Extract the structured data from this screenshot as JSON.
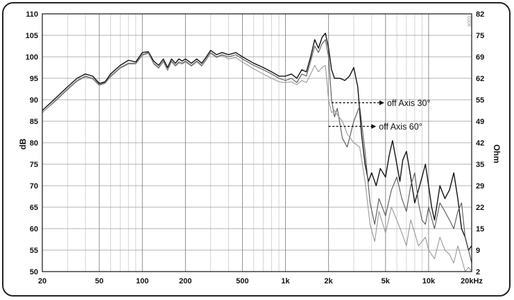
{
  "chart_data": {
    "type": "line",
    "title": "",
    "xlabel": "",
    "ylabel": "dB",
    "y2label": "Ohm",
    "x_scale": "log",
    "xlim": [
      20,
      20000
    ],
    "ylim": [
      50,
      110
    ],
    "y2lim": [
      2,
      82
    ],
    "grid": true,
    "x_ticks": [
      {
        "value": 20,
        "label": "20"
      },
      {
        "value": 50,
        "label": "50"
      },
      {
        "value": 100,
        "label": "100"
      },
      {
        "value": 200,
        "label": "200"
      },
      {
        "value": 500,
        "label": "500"
      },
      {
        "value": 1000,
        "label": "1k"
      },
      {
        "value": 2000,
        "label": "2k"
      },
      {
        "value": 5000,
        "label": "5k"
      },
      {
        "value": 10000,
        "label": "10k"
      },
      {
        "value": 20000,
        "label": "20kHz"
      }
    ],
    "y_ticks": [
      50,
      55,
      60,
      65,
      70,
      75,
      80,
      85,
      90,
      95,
      100,
      105,
      110
    ],
    "y2_ticks": [
      "2",
      "9",
      "15",
      "22",
      "29",
      "35",
      "42",
      "49",
      "55",
      "62",
      "69",
      "75",
      "82"
    ],
    "corner_mark": "0306",
    "annotations": [
      {
        "text": "off Axis 30°",
        "x_start": 2100,
        "x_end": 4900,
        "y": 89.3
      },
      {
        "text": "off Axis 60°",
        "x_start": 2000,
        "x_end": 4300,
        "y": 83.8
      }
    ],
    "series": [
      {
        "color": "#111111",
        "x": [
          20,
          25,
          30,
          35,
          40,
          45,
          50,
          55,
          60,
          70,
          80,
          90,
          100,
          110,
          120,
          130,
          140,
          150,
          160,
          170,
          180,
          190,
          200,
          220,
          240,
          260,
          280,
          300,
          330,
          360,
          400,
          450,
          500,
          600,
          700,
          800,
          900,
          1000,
          1100,
          1200,
          1300,
          1400,
          1500,
          1600,
          1700,
          1800,
          1900,
          2000,
          2100,
          2200,
          2400,
          2600,
          2800,
          3000,
          3200,
          3400,
          3600,
          3800,
          4000,
          4300,
          4600,
          5000,
          5300,
          5600,
          6000,
          6300,
          6600,
          7000,
          7500,
          8000,
          8500,
          9000,
          9500,
          10000,
          10500,
          11000,
          11500,
          12000,
          13000,
          14000,
          15000,
          16000,
          17000,
          18000,
          19000,
          20000
        ],
        "values": [
          87.5,
          90.5,
          93,
          95,
          96,
          95.5,
          93.8,
          94.2,
          96,
          98,
          99.2,
          98.8,
          101,
          101.2,
          99,
          98,
          99.5,
          97.5,
          99.5,
          98.5,
          99.5,
          99,
          99.5,
          98.5,
          99.5,
          98.5,
          100,
          101.5,
          100.5,
          101,
          100.5,
          101,
          100,
          98.5,
          97.5,
          96.5,
          95.5,
          95.5,
          96,
          95,
          97,
          96.5,
          100,
          104,
          102,
          104.5,
          105.5,
          102,
          97,
          95,
          95,
          94.5,
          95.5,
          97.5,
          93,
          82,
          75,
          71,
          73,
          70,
          74,
          72,
          77,
          80.5,
          75,
          71,
          76,
          78,
          72,
          66,
          69,
          72,
          75,
          70,
          65,
          62,
          66,
          70,
          67,
          69,
          73,
          67,
          60,
          58,
          55,
          56
        ]
      },
      {
        "color": "#555555",
        "x": [
          20,
          25,
          30,
          35,
          40,
          45,
          50,
          55,
          60,
          70,
          80,
          90,
          100,
          110,
          120,
          130,
          140,
          150,
          160,
          170,
          180,
          190,
          200,
          220,
          240,
          260,
          280,
          300,
          330,
          360,
          400,
          450,
          500,
          600,
          700,
          800,
          900,
          1000,
          1100,
          1200,
          1300,
          1400,
          1500,
          1600,
          1700,
          1800,
          1900,
          2000,
          2100,
          2200,
          2300,
          2500,
          2700,
          3000,
          3300,
          3600,
          3900,
          4200,
          4500,
          5000,
          5500,
          6000,
          6500,
          7000,
          7500,
          8000,
          8500,
          9000,
          9500,
          10000,
          11000,
          12000,
          13000,
          14000,
          15000,
          16000,
          17000,
          18000,
          19000,
          20000
        ],
        "values": [
          87,
          90,
          92.5,
          94.5,
          95.5,
          95,
          93.5,
          94,
          95.5,
          97.5,
          98.5,
          98.5,
          100.5,
          101,
          98.5,
          97.5,
          99,
          97,
          99,
          98,
          98.8,
          98.5,
          99,
          98,
          99,
          98,
          99.5,
          101,
          100,
          100.5,
          100,
          100.5,
          99.5,
          98,
          97,
          96,
          95,
          94.5,
          95,
          94,
          96,
          95.5,
          99,
          102.5,
          101,
          103,
          104,
          100,
          90,
          86,
          88,
          81,
          79,
          85,
          88.5,
          78,
          66,
          61,
          67,
          63,
          69,
          72,
          67,
          64,
          70,
          73,
          66,
          62,
          61,
          65,
          60,
          66,
          64,
          62,
          60,
          64,
          66,
          58,
          55,
          52
        ]
      },
      {
        "color": "#999999",
        "x": [
          20,
          25,
          30,
          35,
          40,
          45,
          50,
          55,
          60,
          70,
          80,
          90,
          100,
          110,
          120,
          130,
          140,
          150,
          160,
          170,
          180,
          190,
          200,
          220,
          240,
          260,
          280,
          300,
          330,
          360,
          400,
          450,
          500,
          600,
          700,
          800,
          900,
          1000,
          1100,
          1200,
          1300,
          1400,
          1500,
          1600,
          1700,
          1800,
          1900,
          2000,
          2100,
          2200,
          2300,
          2500,
          2700,
          3000,
          3300,
          3600,
          3900,
          4200,
          4500,
          5000,
          5500,
          6000,
          6500,
          7000,
          7500,
          8000,
          8500,
          9000,
          9500,
          10000,
          11000,
          12000,
          13000,
          14000,
          15000,
          16000,
          17000,
          18000,
          19000,
          20000
        ],
        "values": [
          87,
          89.8,
          92.3,
          94.3,
          95.3,
          94.8,
          93.3,
          93.8,
          95.3,
          97.3,
          98.3,
          98.3,
          100.3,
          100.8,
          98.3,
          97.3,
          98.8,
          96.8,
          98.8,
          97.8,
          98.5,
          98.3,
          98.8,
          97.8,
          98.8,
          97.8,
          99.3,
          100.8,
          99.8,
          100.3,
          99.5,
          99.8,
          98.8,
          97.2,
          96,
          95,
          94.2,
          94,
          94.2,
          93.5,
          94.5,
          94,
          96,
          98,
          96.5,
          97.5,
          98,
          90,
          87,
          87.5,
          86.5,
          85,
          82,
          80,
          79,
          71,
          61,
          57,
          64,
          59,
          65,
          62,
          59,
          56,
          62,
          59,
          56,
          57,
          58,
          55,
          53,
          58,
          55,
          54,
          52,
          56,
          53,
          50,
          51,
          50
        ]
      }
    ]
  }
}
